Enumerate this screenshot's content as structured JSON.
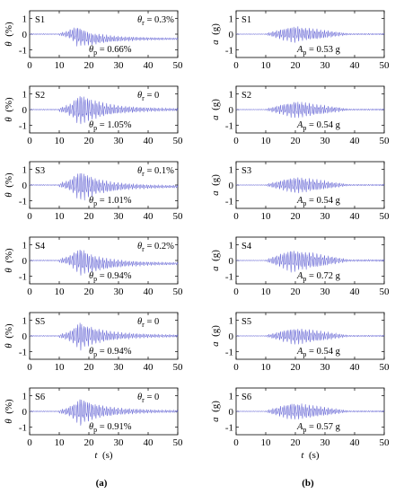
{
  "figure": {
    "caption_a": "(a)",
    "caption_b": "(b)"
  },
  "chart_data": [
    {
      "type": "line",
      "column": "a",
      "row": 0,
      "panel": "S1",
      "xlabel_prefix": "t",
      "xlabel_unit": "(s)",
      "ylabel_symbol": "θ",
      "ylabel_unit": "(%)",
      "xlim": [
        0,
        50
      ],
      "ylim": [
        -1.5,
        1.5
      ],
      "xticks": [
        0,
        10,
        20,
        30,
        40,
        50
      ],
      "yticks": [
        -1,
        0,
        1
      ],
      "x_tick_labels_shown": true,
      "series_color": "#6b6bd6",
      "annotation_top_symbol": "θ",
      "annotation_top_sub": "r",
      "annotation_top_value": "= 0.3%",
      "annotation_bottom_symbol": "θ",
      "annotation_bottom_sub": "p",
      "annotation_bottom_value": "= 0.66%",
      "signal": {
        "kind": "drift",
        "onset": 10,
        "peak_time": 16,
        "peak": 0.66,
        "residual": -0.3,
        "decay": 13
      }
    },
    {
      "type": "line",
      "column": "a",
      "row": 1,
      "panel": "S2",
      "xlabel_prefix": "t",
      "xlabel_unit": "(s)",
      "ylabel_symbol": "θ",
      "ylabel_unit": "(%)",
      "xlim": [
        0,
        50
      ],
      "ylim": [
        -1.5,
        1.5
      ],
      "xticks": [
        0,
        10,
        20,
        30,
        40,
        50
      ],
      "yticks": [
        -1,
        0,
        1
      ],
      "x_tick_labels_shown": true,
      "series_color": "#6b6bd6",
      "annotation_top_symbol": "θ",
      "annotation_top_sub": "r",
      "annotation_top_value": "= 0",
      "annotation_bottom_symbol": "θ",
      "annotation_bottom_sub": "p",
      "annotation_bottom_value": "= 1.05%",
      "signal": {
        "kind": "drift",
        "onset": 10,
        "peak_time": 17,
        "peak": 1.05,
        "residual": 0,
        "decay": 12
      }
    },
    {
      "type": "line",
      "column": "a",
      "row": 2,
      "panel": "S3",
      "xlabel_prefix": "t",
      "xlabel_unit": "(s)",
      "ylabel_symbol": "θ",
      "ylabel_unit": "(%)",
      "xlim": [
        0,
        50
      ],
      "ylim": [
        -1.5,
        1.5
      ],
      "xticks": [
        0,
        10,
        20,
        30,
        40,
        50
      ],
      "yticks": [
        -1,
        0,
        1
      ],
      "x_tick_labels_shown": true,
      "series_color": "#6b6bd6",
      "annotation_top_symbol": "θ",
      "annotation_top_sub": "r",
      "annotation_top_value": "= 0.1%",
      "annotation_bottom_symbol": "θ",
      "annotation_bottom_sub": "p",
      "annotation_bottom_value": "= 1.01%",
      "signal": {
        "kind": "drift",
        "onset": 10,
        "peak_time": 17,
        "peak": 1.01,
        "residual": -0.1,
        "decay": 12
      }
    },
    {
      "type": "line",
      "column": "a",
      "row": 3,
      "panel": "S4",
      "xlabel_prefix": "t",
      "xlabel_unit": "(s)",
      "ylabel_symbol": "θ",
      "ylabel_unit": "(%)",
      "xlim": [
        0,
        50
      ],
      "ylim": [
        -1.5,
        1.5
      ],
      "xticks": [
        0,
        10,
        20,
        30,
        40,
        50
      ],
      "yticks": [
        -1,
        0,
        1
      ],
      "x_tick_labels_shown": true,
      "series_color": "#6b6bd6",
      "annotation_top_symbol": "θ",
      "annotation_top_sub": "r",
      "annotation_top_value": "= 0.2%",
      "annotation_bottom_symbol": "θ",
      "annotation_bottom_sub": "p",
      "annotation_bottom_value": "= 0.94%",
      "signal": {
        "kind": "drift",
        "onset": 10,
        "peak_time": 17,
        "peak": 0.94,
        "residual": -0.2,
        "decay": 12
      }
    },
    {
      "type": "line",
      "column": "a",
      "row": 4,
      "panel": "S5",
      "xlabel_prefix": "t",
      "xlabel_unit": "(s)",
      "ylabel_symbol": "θ",
      "ylabel_unit": "(%)",
      "xlim": [
        0,
        50
      ],
      "ylim": [
        -1.5,
        1.5
      ],
      "xticks": [
        0,
        10,
        20,
        30,
        40,
        50
      ],
      "yticks": [
        -1,
        0,
        1
      ],
      "x_tick_labels_shown": true,
      "series_color": "#6b6bd6",
      "annotation_top_symbol": "θ",
      "annotation_top_sub": "r",
      "annotation_top_value": "= 0",
      "annotation_bottom_symbol": "θ",
      "annotation_bottom_sub": "p",
      "annotation_bottom_value": "= 0.94%",
      "signal": {
        "kind": "drift",
        "onset": 10,
        "peak_time": 17,
        "peak": 0.94,
        "residual": 0,
        "decay": 12
      }
    },
    {
      "type": "line",
      "column": "a",
      "row": 5,
      "panel": "S6",
      "xlabel_prefix": "t",
      "xlabel_unit": "(s)",
      "ylabel_symbol": "θ",
      "ylabel_unit": "(%)",
      "xlim": [
        0,
        50
      ],
      "ylim": [
        -1.5,
        1.5
      ],
      "xticks": [
        0,
        10,
        20,
        30,
        40,
        50
      ],
      "yticks": [
        -1,
        0,
        1
      ],
      "x_tick_labels_shown": true,
      "series_color": "#6b6bd6",
      "annotation_top_symbol": "θ",
      "annotation_top_sub": "r",
      "annotation_top_value": "= 0",
      "annotation_bottom_symbol": "θ",
      "annotation_bottom_sub": "p",
      "annotation_bottom_value": "= 0.91%",
      "signal": {
        "kind": "drift",
        "onset": 10,
        "peak_time": 17,
        "peak": 0.91,
        "residual": 0,
        "decay": 12
      }
    },
    {
      "type": "line",
      "column": "b",
      "row": 0,
      "panel": "S1",
      "xlabel_prefix": "t",
      "xlabel_unit": "(s)",
      "ylabel_symbol": "a",
      "ylabel_unit": "(g)",
      "xlim": [
        0,
        50
      ],
      "ylim": [
        -1.5,
        1.5
      ],
      "xticks": [
        0,
        10,
        20,
        30,
        40,
        50
      ],
      "yticks": [
        -1,
        0,
        1
      ],
      "x_tick_labels_shown": true,
      "series_color": "#6b6bd6",
      "annotation_bottom_symbol": "A",
      "annotation_bottom_sub": "p",
      "annotation_bottom_value": "= 0.53 g",
      "signal": {
        "kind": "accel",
        "onset": 10,
        "peak_time": 19,
        "peak": 0.53,
        "end": 38
      }
    },
    {
      "type": "line",
      "column": "b",
      "row": 1,
      "panel": "S2",
      "xlabel_prefix": "t",
      "xlabel_unit": "(s)",
      "ylabel_symbol": "a",
      "ylabel_unit": "(g)",
      "xlim": [
        0,
        50
      ],
      "ylim": [
        -1.5,
        1.5
      ],
      "xticks": [
        0,
        10,
        20,
        30,
        40,
        50
      ],
      "yticks": [
        -1,
        0,
        1
      ],
      "x_tick_labels_shown": true,
      "series_color": "#6b6bd6",
      "annotation_bottom_symbol": "A",
      "annotation_bottom_sub": "p",
      "annotation_bottom_value": "= 0.54 g",
      "signal": {
        "kind": "accel",
        "onset": 10,
        "peak_time": 20,
        "peak": 0.54,
        "end": 38
      }
    },
    {
      "type": "line",
      "column": "b",
      "row": 2,
      "panel": "S3",
      "xlabel_prefix": "t",
      "xlabel_unit": "(s)",
      "ylabel_symbol": "a",
      "ylabel_unit": "(g)",
      "xlim": [
        0,
        50
      ],
      "ylim": [
        -1.5,
        1.5
      ],
      "xticks": [
        0,
        10,
        20,
        30,
        40,
        50
      ],
      "yticks": [
        -1,
        0,
        1
      ],
      "x_tick_labels_shown": true,
      "series_color": "#6b6bd6",
      "annotation_bottom_symbol": "A",
      "annotation_bottom_sub": "p",
      "annotation_bottom_value": "= 0.54 g",
      "signal": {
        "kind": "accel",
        "onset": 10,
        "peak_time": 20,
        "peak": 0.54,
        "end": 38
      }
    },
    {
      "type": "line",
      "column": "b",
      "row": 3,
      "panel": "S4",
      "xlabel_prefix": "t",
      "xlabel_unit": "(s)",
      "ylabel_symbol": "a",
      "ylabel_unit": "(g)",
      "xlim": [
        0,
        50
      ],
      "ylim": [
        -1.5,
        1.5
      ],
      "xticks": [
        0,
        10,
        20,
        30,
        40,
        50
      ],
      "yticks": [
        -1,
        0,
        1
      ],
      "x_tick_labels_shown": true,
      "series_color": "#6b6bd6",
      "annotation_bottom_symbol": "A",
      "annotation_bottom_sub": "p",
      "annotation_bottom_value": "= 0.72 g",
      "signal": {
        "kind": "accel",
        "onset": 10,
        "peak_time": 19,
        "peak": 0.72,
        "end": 38
      }
    },
    {
      "type": "line",
      "column": "b",
      "row": 4,
      "panel": "S5",
      "xlabel_prefix": "t",
      "xlabel_unit": "(s)",
      "ylabel_symbol": "a",
      "ylabel_unit": "(g)",
      "xlim": [
        0,
        50
      ],
      "ylim": [
        -1.5,
        1.5
      ],
      "xticks": [
        0,
        10,
        20,
        30,
        40,
        50
      ],
      "yticks": [
        -1,
        0,
        1
      ],
      "x_tick_labels_shown": true,
      "series_color": "#6b6bd6",
      "annotation_bottom_symbol": "A",
      "annotation_bottom_sub": "p",
      "annotation_bottom_value": "= 0.54 g",
      "signal": {
        "kind": "accel",
        "onset": 10,
        "peak_time": 20,
        "peak": 0.54,
        "end": 38
      }
    },
    {
      "type": "line",
      "column": "b",
      "row": 5,
      "panel": "S6",
      "xlabel_prefix": "t",
      "xlabel_unit": "(s)",
      "ylabel_symbol": "a",
      "ylabel_unit": "(g)",
      "xlim": [
        0,
        50
      ],
      "ylim": [
        -1.5,
        1.5
      ],
      "xticks": [
        0,
        10,
        20,
        30,
        40,
        50
      ],
      "yticks": [
        -1,
        0,
        1
      ],
      "x_tick_labels_shown": true,
      "series_color": "#6b6bd6",
      "annotation_bottom_symbol": "A",
      "annotation_bottom_sub": "p",
      "annotation_bottom_value": "= 0.57 g",
      "signal": {
        "kind": "accel",
        "onset": 10,
        "peak_time": 19,
        "peak": 0.57,
        "end": 38
      }
    }
  ]
}
